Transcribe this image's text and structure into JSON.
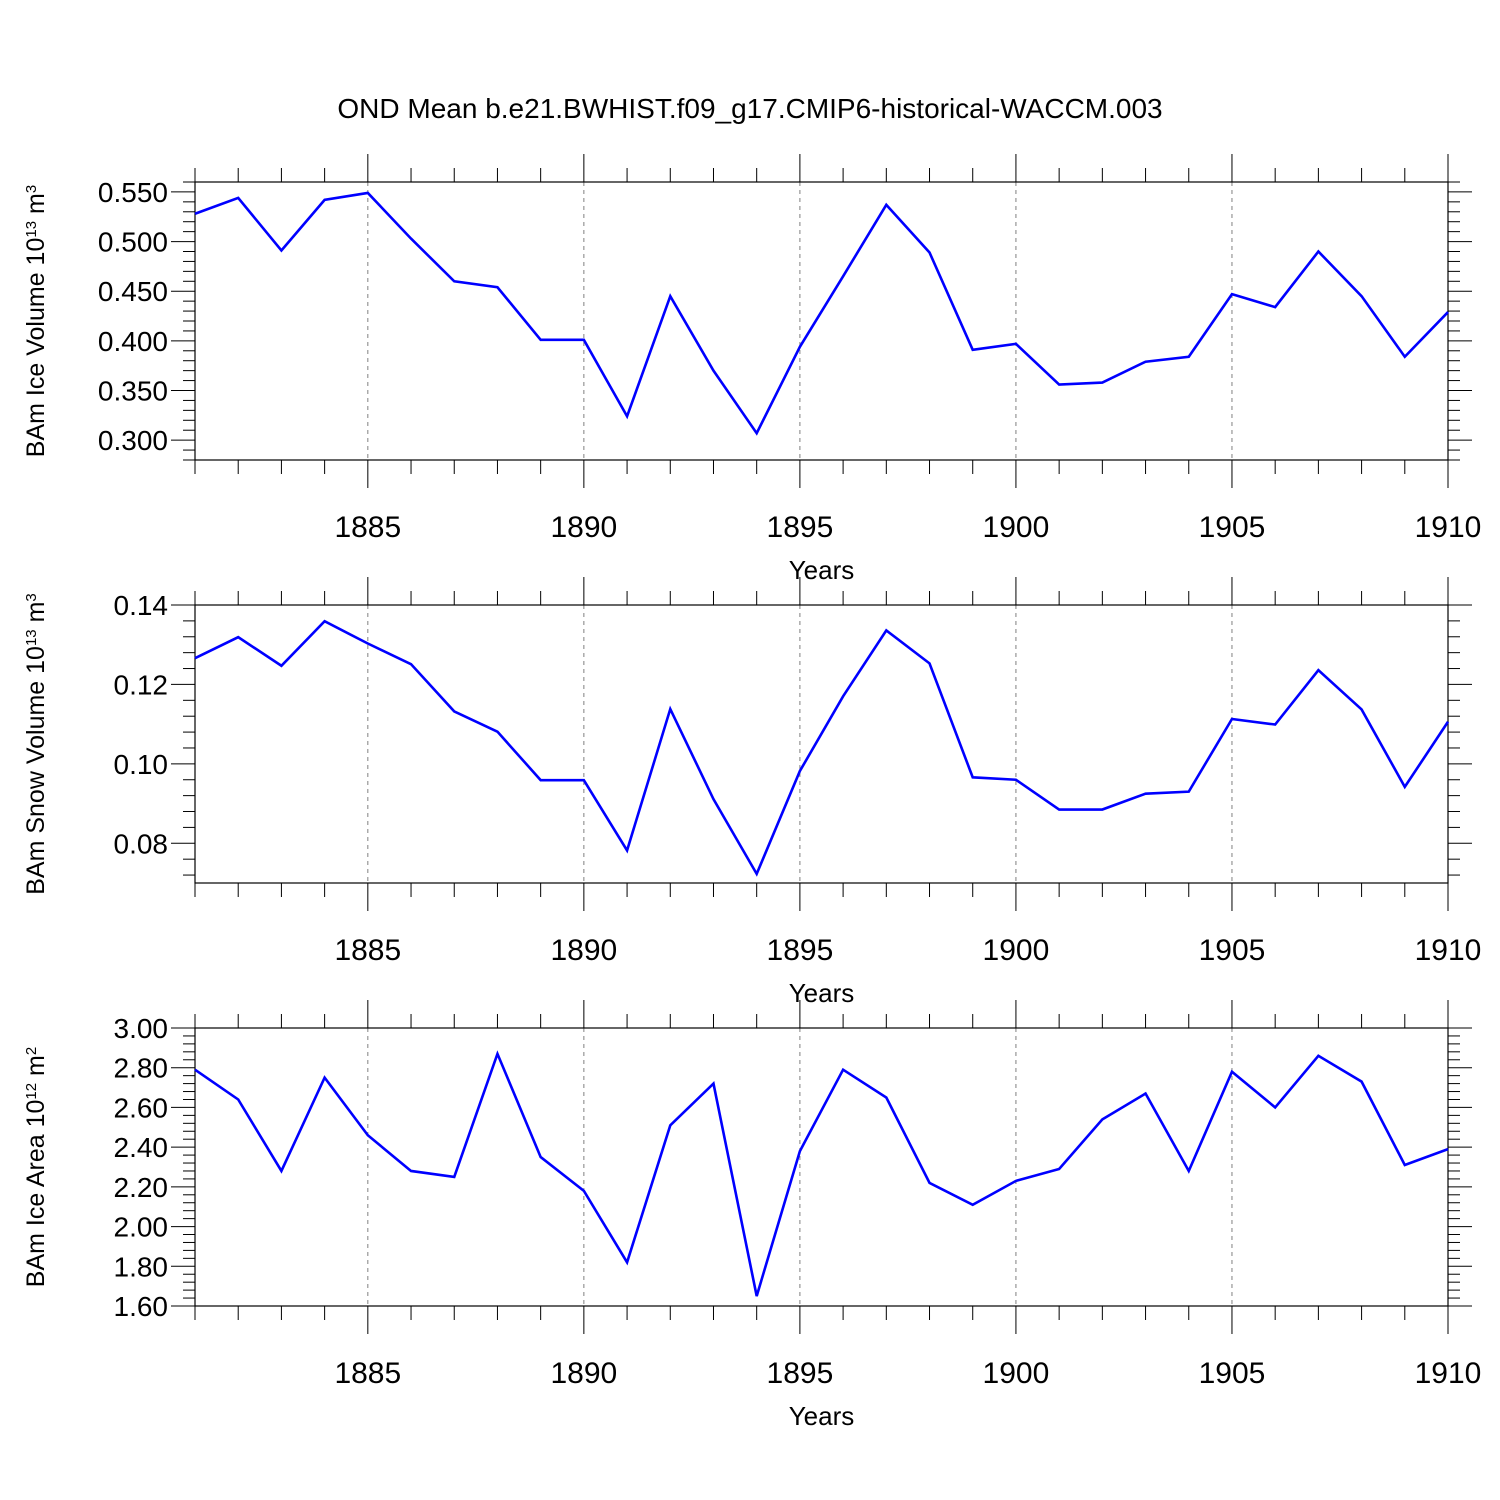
{
  "figure": {
    "title": "OND Mean b.e21.BWHIST.f09_g17.CMIP6-historical-WACCM.003"
  },
  "colors": {
    "line": "#0000ff",
    "axis": "#000000",
    "grid": "#808080"
  },
  "chart_data": [
    {
      "type": "line",
      "ylabel": {
        "base": "BAm Ice Volume 10",
        "exp": "13",
        "unit": " m",
        "unit_exp": "3"
      },
      "xlabel": "Years",
      "xlim": [
        1881,
        1910
      ],
      "ylim": [
        0.28,
        0.56
      ],
      "yticks": [
        0.3,
        0.35,
        0.4,
        0.45,
        0.5,
        0.55
      ],
      "ytick_labels": [
        "0.300",
        "0.350",
        "0.400",
        "0.450",
        "0.500",
        "0.550"
      ],
      "xticks": [
        1885,
        1890,
        1895,
        1900,
        1905,
        1910
      ],
      "xtick_labels": [
        "1885",
        "1890",
        "1895",
        "1900",
        "1905",
        "1910"
      ],
      "x": [
        1881,
        1882,
        1883,
        1884,
        1885,
        1886,
        1887,
        1888,
        1889,
        1890,
        1891,
        1892,
        1893,
        1894,
        1895,
        1896,
        1897,
        1898,
        1899,
        1900,
        1901,
        1902,
        1903,
        1904,
        1905,
        1906,
        1907,
        1908,
        1909,
        1910
      ],
      "series": [
        {
          "name": "BAm Ice Volume",
          "values": [
            0.528,
            0.544,
            0.491,
            0.542,
            0.549,
            0.503,
            0.46,
            0.454,
            0.401,
            0.401,
            0.324,
            0.445,
            0.37,
            0.307,
            0.394,
            0.465,
            0.537,
            0.489,
            0.391,
            0.397,
            0.356,
            0.358,
            0.379,
            0.384,
            0.447,
            0.434,
            0.49,
            0.445,
            0.384,
            0.429
          ]
        }
      ]
    },
    {
      "type": "line",
      "ylabel": {
        "base": "BAm Snow Volume 10",
        "exp": "13",
        "unit": " m",
        "unit_exp": "3"
      },
      "xlabel": "Years",
      "xlim": [
        1881,
        1910
      ],
      "ylim": [
        0.07,
        0.14
      ],
      "yticks": [
        0.08,
        0.1,
        0.12,
        0.14
      ],
      "ytick_labels": [
        "0.08",
        "0.10",
        "0.12",
        "0.14"
      ],
      "xticks": [
        1885,
        1890,
        1895,
        1900,
        1905,
        1910
      ],
      "xtick_labels": [
        "1885",
        "1890",
        "1895",
        "1900",
        "1905",
        "1910"
      ],
      "x": [
        1881,
        1882,
        1883,
        1884,
        1885,
        1886,
        1887,
        1888,
        1889,
        1890,
        1891,
        1892,
        1893,
        1894,
        1895,
        1896,
        1897,
        1898,
        1899,
        1900,
        1901,
        1902,
        1903,
        1904,
        1905,
        1906,
        1907,
        1908,
        1909,
        1910
      ],
      "series": [
        {
          "name": "BAm Snow Volume",
          "values": [
            0.1266,
            0.1319,
            0.1247,
            0.1359,
            0.1303,
            0.1251,
            0.1132,
            0.1081,
            0.0959,
            0.0959,
            0.0782,
            0.1138,
            0.0911,
            0.0723,
            0.0982,
            0.117,
            0.1336,
            0.1253,
            0.0966,
            0.096,
            0.0885,
            0.0885,
            0.0925,
            0.093,
            0.1113,
            0.1099,
            0.1236,
            0.1137,
            0.0942,
            0.1106
          ]
        }
      ]
    },
    {
      "type": "line",
      "ylabel": {
        "base": "BAm Ice Area 10",
        "exp": "12",
        "unit": " m",
        "unit_exp": "2"
      },
      "xlabel": "Years",
      "xlim": [
        1881,
        1910
      ],
      "ylim": [
        1.6,
        3.0
      ],
      "yticks": [
        1.6,
        1.8,
        2.0,
        2.2,
        2.4,
        2.6,
        2.8,
        3.0
      ],
      "ytick_labels": [
        "1.60",
        "1.80",
        "2.00",
        "2.20",
        "2.40",
        "2.60",
        "2.80",
        "3.00"
      ],
      "xticks": [
        1885,
        1890,
        1895,
        1900,
        1905,
        1910
      ],
      "xtick_labels": [
        "1885",
        "1890",
        "1895",
        "1900",
        "1905",
        "1910"
      ],
      "x": [
        1881,
        1882,
        1883,
        1884,
        1885,
        1886,
        1887,
        1888,
        1889,
        1890,
        1891,
        1892,
        1893,
        1894,
        1895,
        1896,
        1897,
        1898,
        1899,
        1900,
        1901,
        1902,
        1903,
        1904,
        1905,
        1906,
        1907,
        1908,
        1909,
        1910
      ],
      "series": [
        {
          "name": "BAm Ice Area",
          "values": [
            2.79,
            2.64,
            2.28,
            2.75,
            2.46,
            2.28,
            2.25,
            2.87,
            2.35,
            2.18,
            1.82,
            2.51,
            2.72,
            1.65,
            2.38,
            2.79,
            2.65,
            2.22,
            2.11,
            2.23,
            2.29,
            2.54,
            2.67,
            2.28,
            2.78,
            2.6,
            2.86,
            2.73,
            2.31,
            2.39
          ]
        }
      ]
    }
  ]
}
